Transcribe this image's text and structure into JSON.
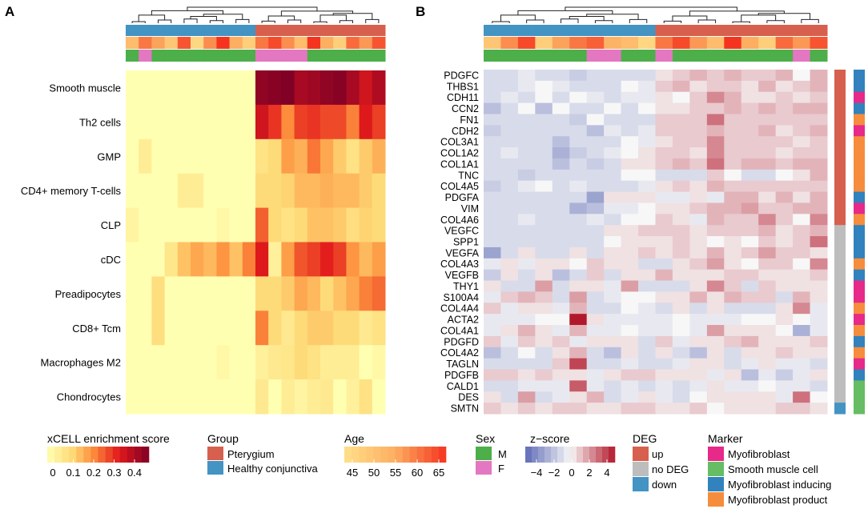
{
  "chart_data": [
    {
      "panel": "A",
      "type": "heatmap",
      "legend_title": "xCELL enrichment score",
      "legend_ticks": [
        "0",
        "0.1",
        "0.2",
        "0.3",
        "0.4"
      ],
      "value_range": [
        0,
        0.42
      ],
      "rows": [
        "Smooth muscle",
        "Th2 cells",
        "GMP",
        "CD4+ memory T-cells",
        "CLP",
        "cDC",
        "Preadipocytes",
        "CD8+ Tcm",
        "Macrophages M2",
        "Chondrocytes"
      ],
      "groups": [
        "H",
        "H",
        "H",
        "H",
        "H",
        "H",
        "H",
        "H",
        "H",
        "H",
        "P",
        "P",
        "P",
        "P",
        "P",
        "P",
        "P",
        "P",
        "P",
        "P"
      ],
      "ages": [
        52,
        60,
        56,
        50,
        63,
        46,
        58,
        66,
        55,
        48,
        60,
        64,
        58,
        52,
        66,
        55,
        48,
        61,
        57,
        63
      ],
      "sexes": [
        "M",
        "F",
        "M",
        "M",
        "M",
        "M",
        "M",
        "M",
        "M",
        "M",
        "F",
        "F",
        "F",
        "F",
        "M",
        "M",
        "M",
        "M",
        "M",
        "M"
      ],
      "values": [
        [
          0,
          0,
          0,
          0,
          0,
          0,
          0,
          0,
          0,
          0,
          0.4,
          0.41,
          0.42,
          0.37,
          0.38,
          0.4,
          0.41,
          0.37,
          0.32,
          0.36
        ],
        [
          0,
          0,
          0,
          0,
          0,
          0,
          0,
          0,
          0,
          0,
          0.32,
          0.27,
          0.19,
          0.26,
          0.27,
          0.25,
          0.25,
          0.2,
          0.3,
          0.26
        ],
        [
          0,
          0.05,
          0,
          0,
          0,
          0,
          0,
          0,
          0,
          0,
          0.08,
          0.1,
          0.17,
          0.15,
          0.21,
          0.16,
          0.12,
          0.08,
          0.12,
          0.15
        ],
        [
          0,
          0,
          0,
          0,
          0.05,
          0.05,
          0,
          0,
          0,
          0,
          0.1,
          0.1,
          0.11,
          0.14,
          0.14,
          0.15,
          0.14,
          0.14,
          0.12,
          0.1
        ],
        [
          0.03,
          0,
          0,
          0,
          0,
          0,
          0,
          0.02,
          0,
          0,
          0.23,
          0.1,
          0.08,
          0.1,
          0.13,
          0.13,
          0.12,
          0.09,
          0.11,
          0.1
        ],
        [
          0,
          0,
          0,
          0.07,
          0.13,
          0.16,
          0.14,
          0.18,
          0.13,
          0.2,
          0.3,
          0.04,
          0.17,
          0.24,
          0.26,
          0.29,
          0.26,
          0.18,
          0.14,
          0.17
        ],
        [
          0,
          0,
          0.09,
          0,
          0,
          0,
          0,
          0,
          0,
          0,
          0.1,
          0.1,
          0.12,
          0.16,
          0.14,
          0.1,
          0.13,
          0.16,
          0.2,
          0.22
        ],
        [
          0,
          0,
          0.09,
          0,
          0,
          0,
          0,
          0,
          0,
          0,
          0.2,
          0.1,
          0.06,
          0.1,
          0.12,
          0.12,
          0.1,
          0.1,
          0.06,
          0.08
        ],
        [
          0,
          0,
          0,
          0,
          0,
          0,
          0,
          0.02,
          0,
          0,
          0.04,
          0.06,
          0.07,
          0.1,
          0.08,
          0.05,
          0.05,
          0.05,
          0,
          0.02
        ],
        [
          0,
          0,
          0,
          0,
          0,
          0,
          0,
          0,
          0,
          0,
          0.06,
          0,
          0.05,
          0.03,
          0.05,
          0.06,
          0,
          0.04,
          0.08,
          0
        ]
      ]
    },
    {
      "panel": "B",
      "type": "heatmap",
      "legend_title": "z−score",
      "legend_ticks": [
        "−4",
        "−2",
        "0",
        "2",
        "4"
      ],
      "value_range": [
        -5,
        5
      ],
      "genes": [
        "PDGFC",
        "THBS1",
        "CDH11",
        "CCN2",
        "FN1",
        "CDH2",
        "COL3A1",
        "COL1A2",
        "COL1A1",
        "TNC",
        "COL4A5",
        "PDGFA",
        "VIM",
        "COL4A6",
        "VEGFC",
        "SPP1",
        "VEGFA",
        "COL4A3",
        "VEGFB",
        "THY1",
        "S100A4",
        "COL4A4",
        "ACTA2",
        "COL4A1",
        "PDGFD",
        "COL4A2",
        "TAGLN",
        "PDGFB",
        "CALD1",
        "DES",
        "SMTN"
      ],
      "groups": [
        "H",
        "H",
        "H",
        "H",
        "H",
        "H",
        "H",
        "H",
        "H",
        "H",
        "P",
        "P",
        "P",
        "P",
        "P",
        "P",
        "P",
        "P",
        "P",
        "P"
      ],
      "ages": [
        50,
        58,
        64,
        48,
        56,
        60,
        62,
        54,
        52,
        46,
        60,
        64,
        57,
        52,
        66,
        55,
        48,
        61,
        57,
        63
      ],
      "sexes": [
        "M",
        "M",
        "M",
        "M",
        "M",
        "M",
        "F",
        "F",
        "M",
        "M",
        "F",
        "M",
        "M",
        "M",
        "M",
        "M",
        "M",
        "M",
        "F",
        "M"
      ],
      "deg": [
        "up",
        "up",
        "up",
        "up",
        "up",
        "up",
        "up",
        "up",
        "up",
        "up",
        "up",
        "up",
        "up",
        "up",
        "no DEG",
        "no DEG",
        "no DEG",
        "no DEG",
        "no DEG",
        "no DEG",
        "no DEG",
        "no DEG",
        "no DEG",
        "no DEG",
        "no DEG",
        "no DEG",
        "no DEG",
        "no DEG",
        "no DEG",
        "no DEG",
        "down"
      ],
      "marker": [
        "Myofibroblast inducing",
        "Myofibroblast inducing",
        "Myofibroblast",
        "Myofibroblast inducing",
        "Myofibroblast product",
        "Myofibroblast",
        "Myofibroblast product",
        "Myofibroblast product",
        "Myofibroblast product",
        "Myofibroblast product",
        "Myofibroblast product",
        "Myofibroblast inducing",
        "Myofibroblast",
        "Myofibroblast product",
        "Myofibroblast inducing",
        "Myofibroblast inducing",
        "Myofibroblast inducing",
        "Myofibroblast product",
        "Myofibroblast inducing",
        "Myofibroblast",
        "Myofibroblast",
        "Myofibroblast product",
        "Myofibroblast",
        "Myofibroblast product",
        "Myofibroblast inducing",
        "Myofibroblast product",
        "Myofibroblast",
        "Myofibroblast inducing",
        "Smooth muscle cell",
        "Smooth muscle cell",
        "Smooth muscle cell"
      ],
      "values": [
        [
          -1,
          -1,
          -0.5,
          -1,
          -1,
          -1.5,
          -1,
          -1,
          -1,
          -1,
          0.5,
          1,
          1.5,
          1,
          1.5,
          1,
          1,
          1.5,
          0,
          1.5
        ],
        [
          -1,
          -1,
          -0.5,
          0,
          -0.5,
          -1,
          -1,
          -1,
          0,
          -0.5,
          1,
          1.5,
          0.5,
          1,
          1,
          0.5,
          1.5,
          0.5,
          1,
          1.5
        ],
        [
          -1,
          -0.5,
          -1,
          0,
          -1,
          0,
          -0.5,
          -1,
          -0.5,
          -0.5,
          0.5,
          0,
          1,
          2.5,
          1.5,
          0.5,
          0.5,
          1,
          0.5,
          1
        ],
        [
          -2,
          -1,
          0,
          -2,
          0,
          -1,
          -1,
          0,
          -1,
          0,
          0.5,
          0.5,
          1,
          1,
          1.5,
          1,
          1.5,
          1,
          1.5,
          1.5
        ],
        [
          -1,
          -1,
          -1,
          -1,
          -1,
          -1.5,
          0,
          -1,
          -1,
          -1,
          1,
          1,
          1,
          3,
          1,
          1,
          1,
          1,
          1,
          1
        ],
        [
          -1.5,
          -1,
          -1,
          -1,
          -1,
          -1,
          -2,
          -0.5,
          -1,
          -0.5,
          1,
          1,
          1,
          1.5,
          1,
          1,
          1.5,
          0.5,
          1,
          1.5
        ],
        [
          -1,
          -1,
          -1,
          -1,
          -2,
          -1,
          -1,
          -1,
          0,
          -0.5,
          0.5,
          1,
          1,
          2.5,
          1,
          1,
          1,
          1,
          0.5,
          1
        ],
        [
          -1,
          -0.5,
          -1,
          -1,
          -2.5,
          -1.5,
          -1,
          -0.5,
          0,
          0.5,
          1,
          1,
          0.5,
          2.5,
          1,
          1,
          1,
          0.5,
          1,
          1
        ],
        [
          -1,
          -1,
          -1,
          -1,
          -2,
          -1,
          -1.5,
          -1,
          0.5,
          0.5,
          1,
          1.5,
          1,
          3,
          1,
          1.5,
          1.5,
          1,
          1.5,
          1.5
        ],
        [
          -1,
          -1,
          -1.5,
          -1,
          -1,
          -1,
          -1,
          -1,
          0,
          0,
          -1,
          -1,
          -1,
          1,
          0,
          -1,
          -1,
          0,
          0.5,
          1.5
        ],
        [
          -1.5,
          -1,
          -0.5,
          0,
          -1,
          -0.5,
          -1,
          -1,
          -1,
          -0.5,
          0.5,
          1,
          0.5,
          1.5,
          1,
          1,
          1,
          1,
          1,
          1
        ],
        [
          -1,
          -1,
          -1,
          -1,
          -1,
          -1,
          -3,
          0.5,
          0.5,
          0.5,
          -0.5,
          -0.5,
          0.5,
          -0.5,
          1.5,
          1.5,
          0.5,
          1.5,
          0.5,
          1.5
        ],
        [
          -1,
          -1,
          -1,
          -1,
          -1,
          -2.5,
          -2,
          -0.5,
          -0.5,
          0,
          0.5,
          0.5,
          1,
          1.5,
          1.5,
          2,
          1,
          1,
          1.5,
          1.5
        ],
        [
          -1,
          -1,
          -0.5,
          -1,
          -1,
          -1,
          -0.5,
          -1,
          0,
          0,
          1,
          0.5,
          -0.5,
          1.5,
          1,
          1,
          2.5,
          1,
          0,
          2.5
        ],
        [
          -1,
          -1,
          -1,
          -1,
          -1,
          -1,
          -1,
          0.5,
          0.5,
          1,
          1,
          1,
          0.5,
          1,
          1,
          1,
          1.5,
          0.5,
          1,
          1.5
        ],
        [
          -1,
          -1,
          -1,
          -1,
          -1,
          -1,
          -1,
          0,
          0.5,
          0.5,
          0.5,
          1,
          0.5,
          0,
          0.5,
          0,
          1,
          0.5,
          1,
          3
        ],
        [
          -3,
          -1,
          0.5,
          -1,
          -1,
          0.5,
          -1,
          0.5,
          0.5,
          1,
          0.5,
          1,
          0.5,
          1.5,
          0.5,
          1,
          2,
          1,
          1,
          0.5
        ],
        [
          -0.5,
          0.5,
          -0.5,
          0.5,
          0.5,
          0,
          1,
          0.5,
          0.5,
          -1,
          -1,
          0.5,
          1,
          2,
          0.5,
          0,
          1,
          1,
          0,
          2.5
        ],
        [
          -1.5,
          0.5,
          -1,
          0.5,
          -2,
          -1,
          1,
          -1,
          0.5,
          0.5,
          1.5,
          0.5,
          0.5,
          0.5,
          1,
          1,
          0.5,
          0.5,
          0.5,
          1
        ],
        [
          0.5,
          -1,
          -1,
          2,
          -1,
          0.5,
          0.5,
          -0.5,
          2,
          -1,
          -1,
          -1,
          0.5,
          2.5,
          1,
          -1,
          1,
          0.5,
          0.5,
          0.5
        ],
        [
          -0.5,
          1,
          1.5,
          1,
          -1,
          2,
          -1,
          -0.5,
          0,
          0,
          0.5,
          0.5,
          1.5,
          0.5,
          1.5,
          1,
          1,
          -1,
          1.5,
          0.5
        ],
        [
          1,
          -0.5,
          0.5,
          0.5,
          -0.5,
          1.5,
          -1,
          -1,
          0,
          -0.5,
          -1,
          0.5,
          -1,
          0.5,
          -1,
          -1,
          -1,
          0.5,
          2.5,
          -0.5
        ],
        [
          -0.5,
          -0.5,
          -0.5,
          0,
          0,
          5,
          0.5,
          -0.5,
          -0.5,
          -0.5,
          -0.5,
          0,
          -0.5,
          -0.5,
          -0.5,
          0,
          0,
          0.5,
          0,
          -0.5
        ],
        [
          -0.5,
          0.5,
          1.5,
          0.5,
          -0.5,
          1.5,
          -0.5,
          -0.5,
          0,
          -0.5,
          -0.5,
          0,
          -0.5,
          2,
          0.5,
          0.5,
          0.5,
          0,
          -2.5,
          -0.5
        ],
        [
          1,
          -0.5,
          1,
          0.5,
          1,
          -0.5,
          0.5,
          0.5,
          0.5,
          -1,
          1,
          -0.5,
          0.5,
          0.5,
          1,
          1.5,
          0.5,
          0.5,
          0.5,
          1
        ],
        [
          -2,
          -1,
          0,
          -1,
          0.5,
          1.5,
          -1,
          -2,
          0.5,
          -1,
          0.5,
          -1,
          -2,
          0.5,
          -1,
          0.5,
          0.5,
          1,
          0.5,
          0.5
        ],
        [
          -1,
          -1,
          -1,
          -1,
          1,
          4,
          -1,
          -1,
          -0.5,
          -1,
          -1,
          -0.5,
          0.5,
          0.5,
          -1,
          -0.5,
          0.5,
          -0.5,
          -0.5,
          -1
        ],
        [
          1,
          1,
          0.5,
          1,
          0.5,
          0.5,
          -0.5,
          0.5,
          1,
          1,
          0.5,
          0.5,
          0.5,
          -0.5,
          0.5,
          -2,
          -0.5,
          -1.5,
          -0.5,
          0.5
        ],
        [
          -1,
          -1,
          -0.5,
          -0.5,
          -0.5,
          3.5,
          -0.5,
          -1,
          -0.5,
          -1,
          -0.5,
          -1,
          -0.5,
          0.5,
          -0.5,
          -0.5,
          0,
          -0.5,
          -0.5,
          -1
        ],
        [
          0.5,
          -1,
          2,
          -1,
          -0.5,
          0.5,
          1.5,
          -1,
          -0.5,
          0.5,
          -0.5,
          -1,
          0,
          0.5,
          0.5,
          0.5,
          0.5,
          -0.5,
          3,
          0
        ],
        [
          1,
          0.5,
          1,
          0.5,
          1,
          1,
          0.5,
          0.5,
          1,
          1,
          0.5,
          0.5,
          1,
          0,
          0.5,
          0.5,
          0.5,
          1,
          1,
          0.5
        ]
      ]
    }
  ],
  "panel_a_letter": "A",
  "panel_b_letter": "B",
  "legends": {
    "score": {
      "title": "xCELL enrichment score",
      "ticks": [
        "0",
        "0.1",
        "0.2",
        "0.3",
        "0.4"
      ]
    },
    "group": {
      "title": "Group",
      "items": [
        {
          "label": "Pterygium",
          "color": "#D6604D"
        },
        {
          "label": "Healthy conjunctiva",
          "color": "#4393C3"
        }
      ]
    },
    "age": {
      "title": "Age",
      "ticks": [
        "45",
        "50",
        "55",
        "60",
        "65"
      ]
    },
    "sex": {
      "title": "Sex",
      "items": [
        {
          "label": "M",
          "color": "#4DAF4A"
        },
        {
          "label": "F",
          "color": "#E377C2"
        }
      ]
    },
    "zscore": {
      "title": "z−score",
      "ticks": [
        "−4",
        "−2",
        "0",
        "2",
        "4"
      ]
    },
    "deg": {
      "title": "DEG",
      "items": [
        {
          "label": "up",
          "color": "#D6604D"
        },
        {
          "label": "no DEG",
          "color": "#BDBDBD"
        },
        {
          "label": "down",
          "color": "#4393C3"
        }
      ]
    },
    "marker": {
      "title": "Marker",
      "items": [
        {
          "label": "Myofibroblast",
          "color": "#E7298A"
        },
        {
          "label": "Smooth muscle cell",
          "color": "#66BD63"
        },
        {
          "label": "Myofibroblast inducing",
          "color": "#3182BD"
        },
        {
          "label": "Myofibroblast product",
          "color": "#F58D3D"
        }
      ]
    }
  }
}
